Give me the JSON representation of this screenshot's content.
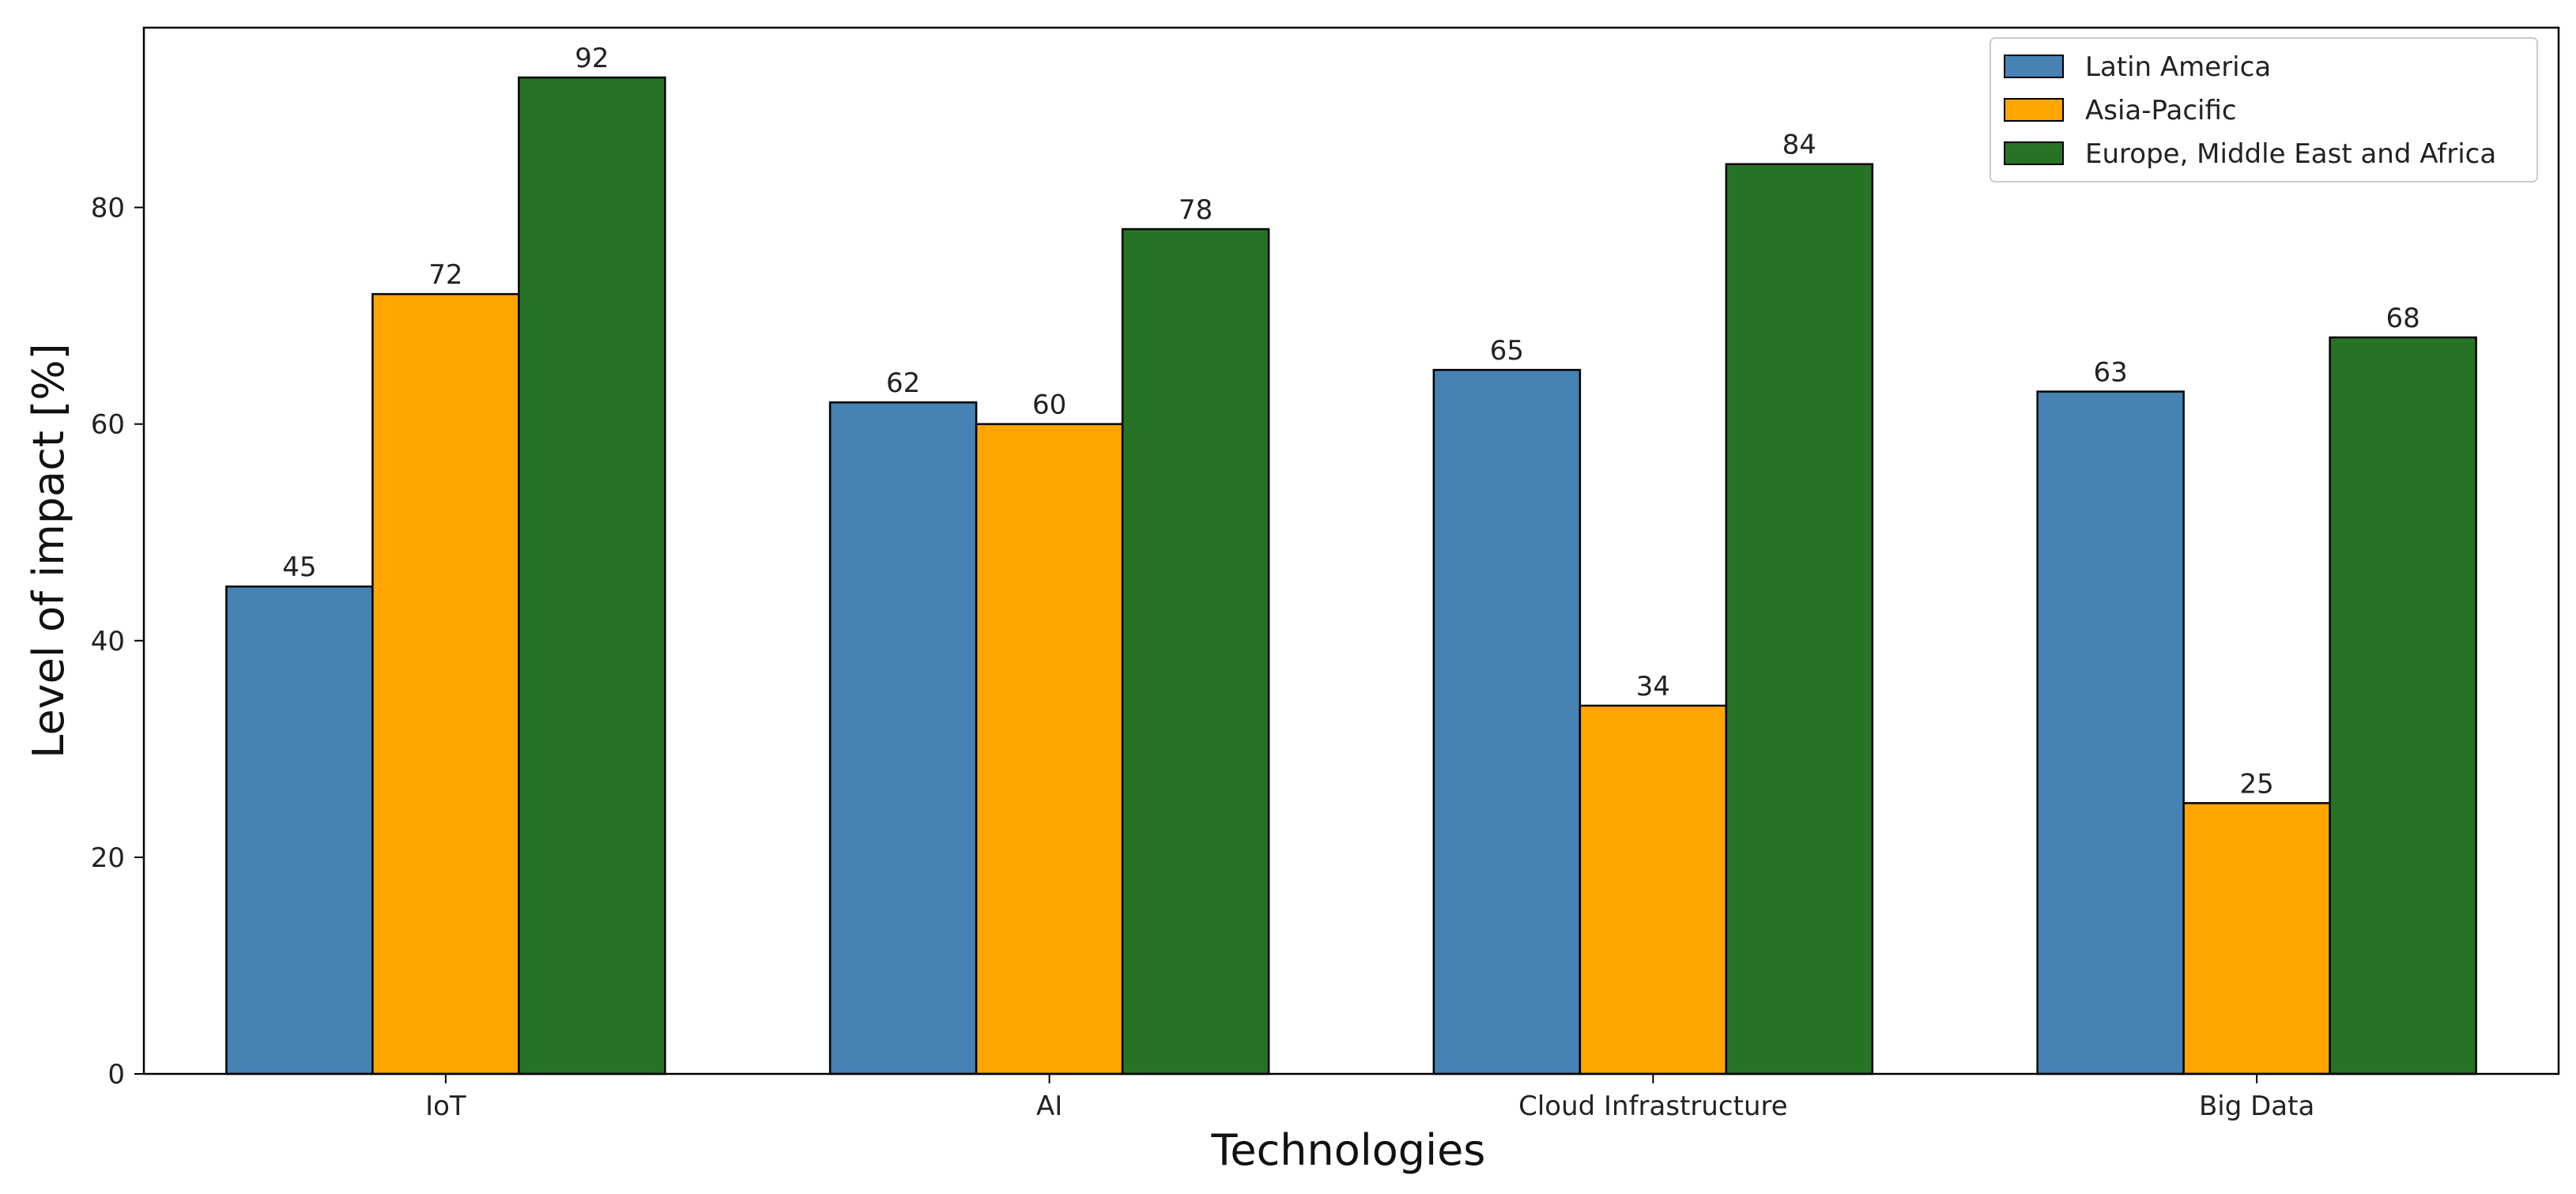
{
  "chart_data": {
    "type": "bar",
    "title": "",
    "xlabel": "Technologies",
    "ylabel": "Level of impact [%]",
    "categories": [
      "IoT",
      "AI",
      "Cloud Infrastructure",
      "Big Data"
    ],
    "series": [
      {
        "name": "Latin America",
        "color": "#4682b4",
        "values": [
          45,
          62,
          65,
          63
        ]
      },
      {
        "name": "Asia-Pacific",
        "color": "#ffa500",
        "values": [
          72,
          60,
          34,
          25
        ]
      },
      {
        "name": "Europe, Middle East and Africa",
        "color": "#267326",
        "values": [
          92,
          78,
          84,
          68
        ]
      }
    ],
    "ylim": [
      0,
      96.6
    ],
    "yticks": [
      0,
      20,
      40,
      60,
      80
    ],
    "grid": false,
    "legend_position": "top-right",
    "data_labels": true
  }
}
